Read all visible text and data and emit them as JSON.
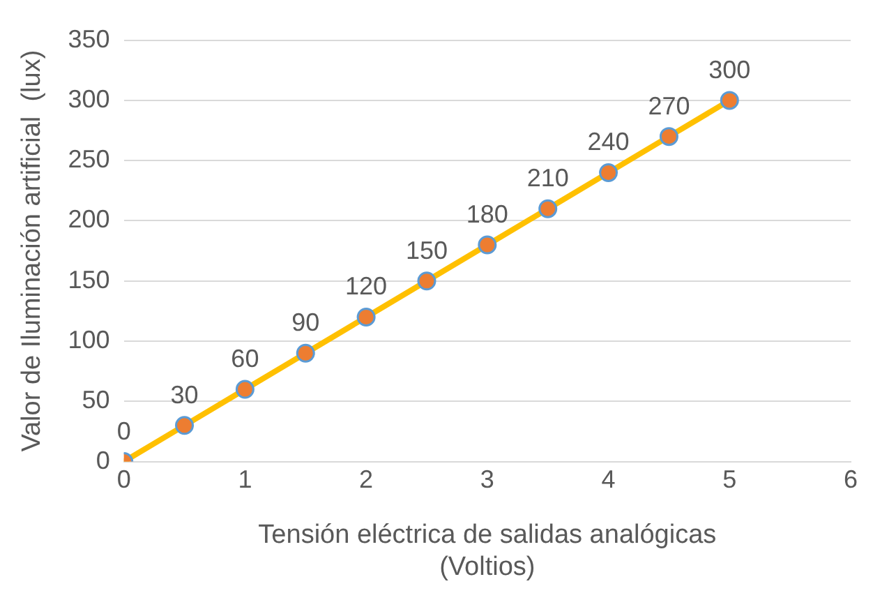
{
  "chart_data": {
    "type": "line",
    "xlabel": "Tensión eléctrica de salidas analógicas\n(Voltios)",
    "ylabel": "Valor de Iluminación artificial  (lux)",
    "x": [
      0,
      0.5,
      1,
      1.5,
      2,
      2.5,
      3,
      3.5,
      4,
      4.5,
      5
    ],
    "series": [
      {
        "color": "#ffc000",
        "colors": [
          "#ed7d31",
          "#ed7d31",
          "#ed7d31",
          "#ed7d31",
          "#ed7d31",
          "#ed7d31",
          "#ed7d31",
          "#ed7d31",
          "#ed7d31",
          "#ed7d31",
          "#ed7d31"
        ],
        "values": [
          0,
          30,
          60,
          90,
          120,
          150,
          180,
          210,
          240,
          270,
          300
        ]
      }
    ],
    "xlim": [
      0,
      6
    ],
    "xticks": [
      0,
      1,
      2,
      3,
      4,
      5,
      6
    ],
    "ylim": [
      0,
      350
    ],
    "yticks": [
      0,
      50,
      100,
      150,
      200,
      250,
      300,
      350
    ],
    "grid": "y",
    "legend": false,
    "marker": "circle",
    "line_style": "solid",
    "data_labels": true
  }
}
